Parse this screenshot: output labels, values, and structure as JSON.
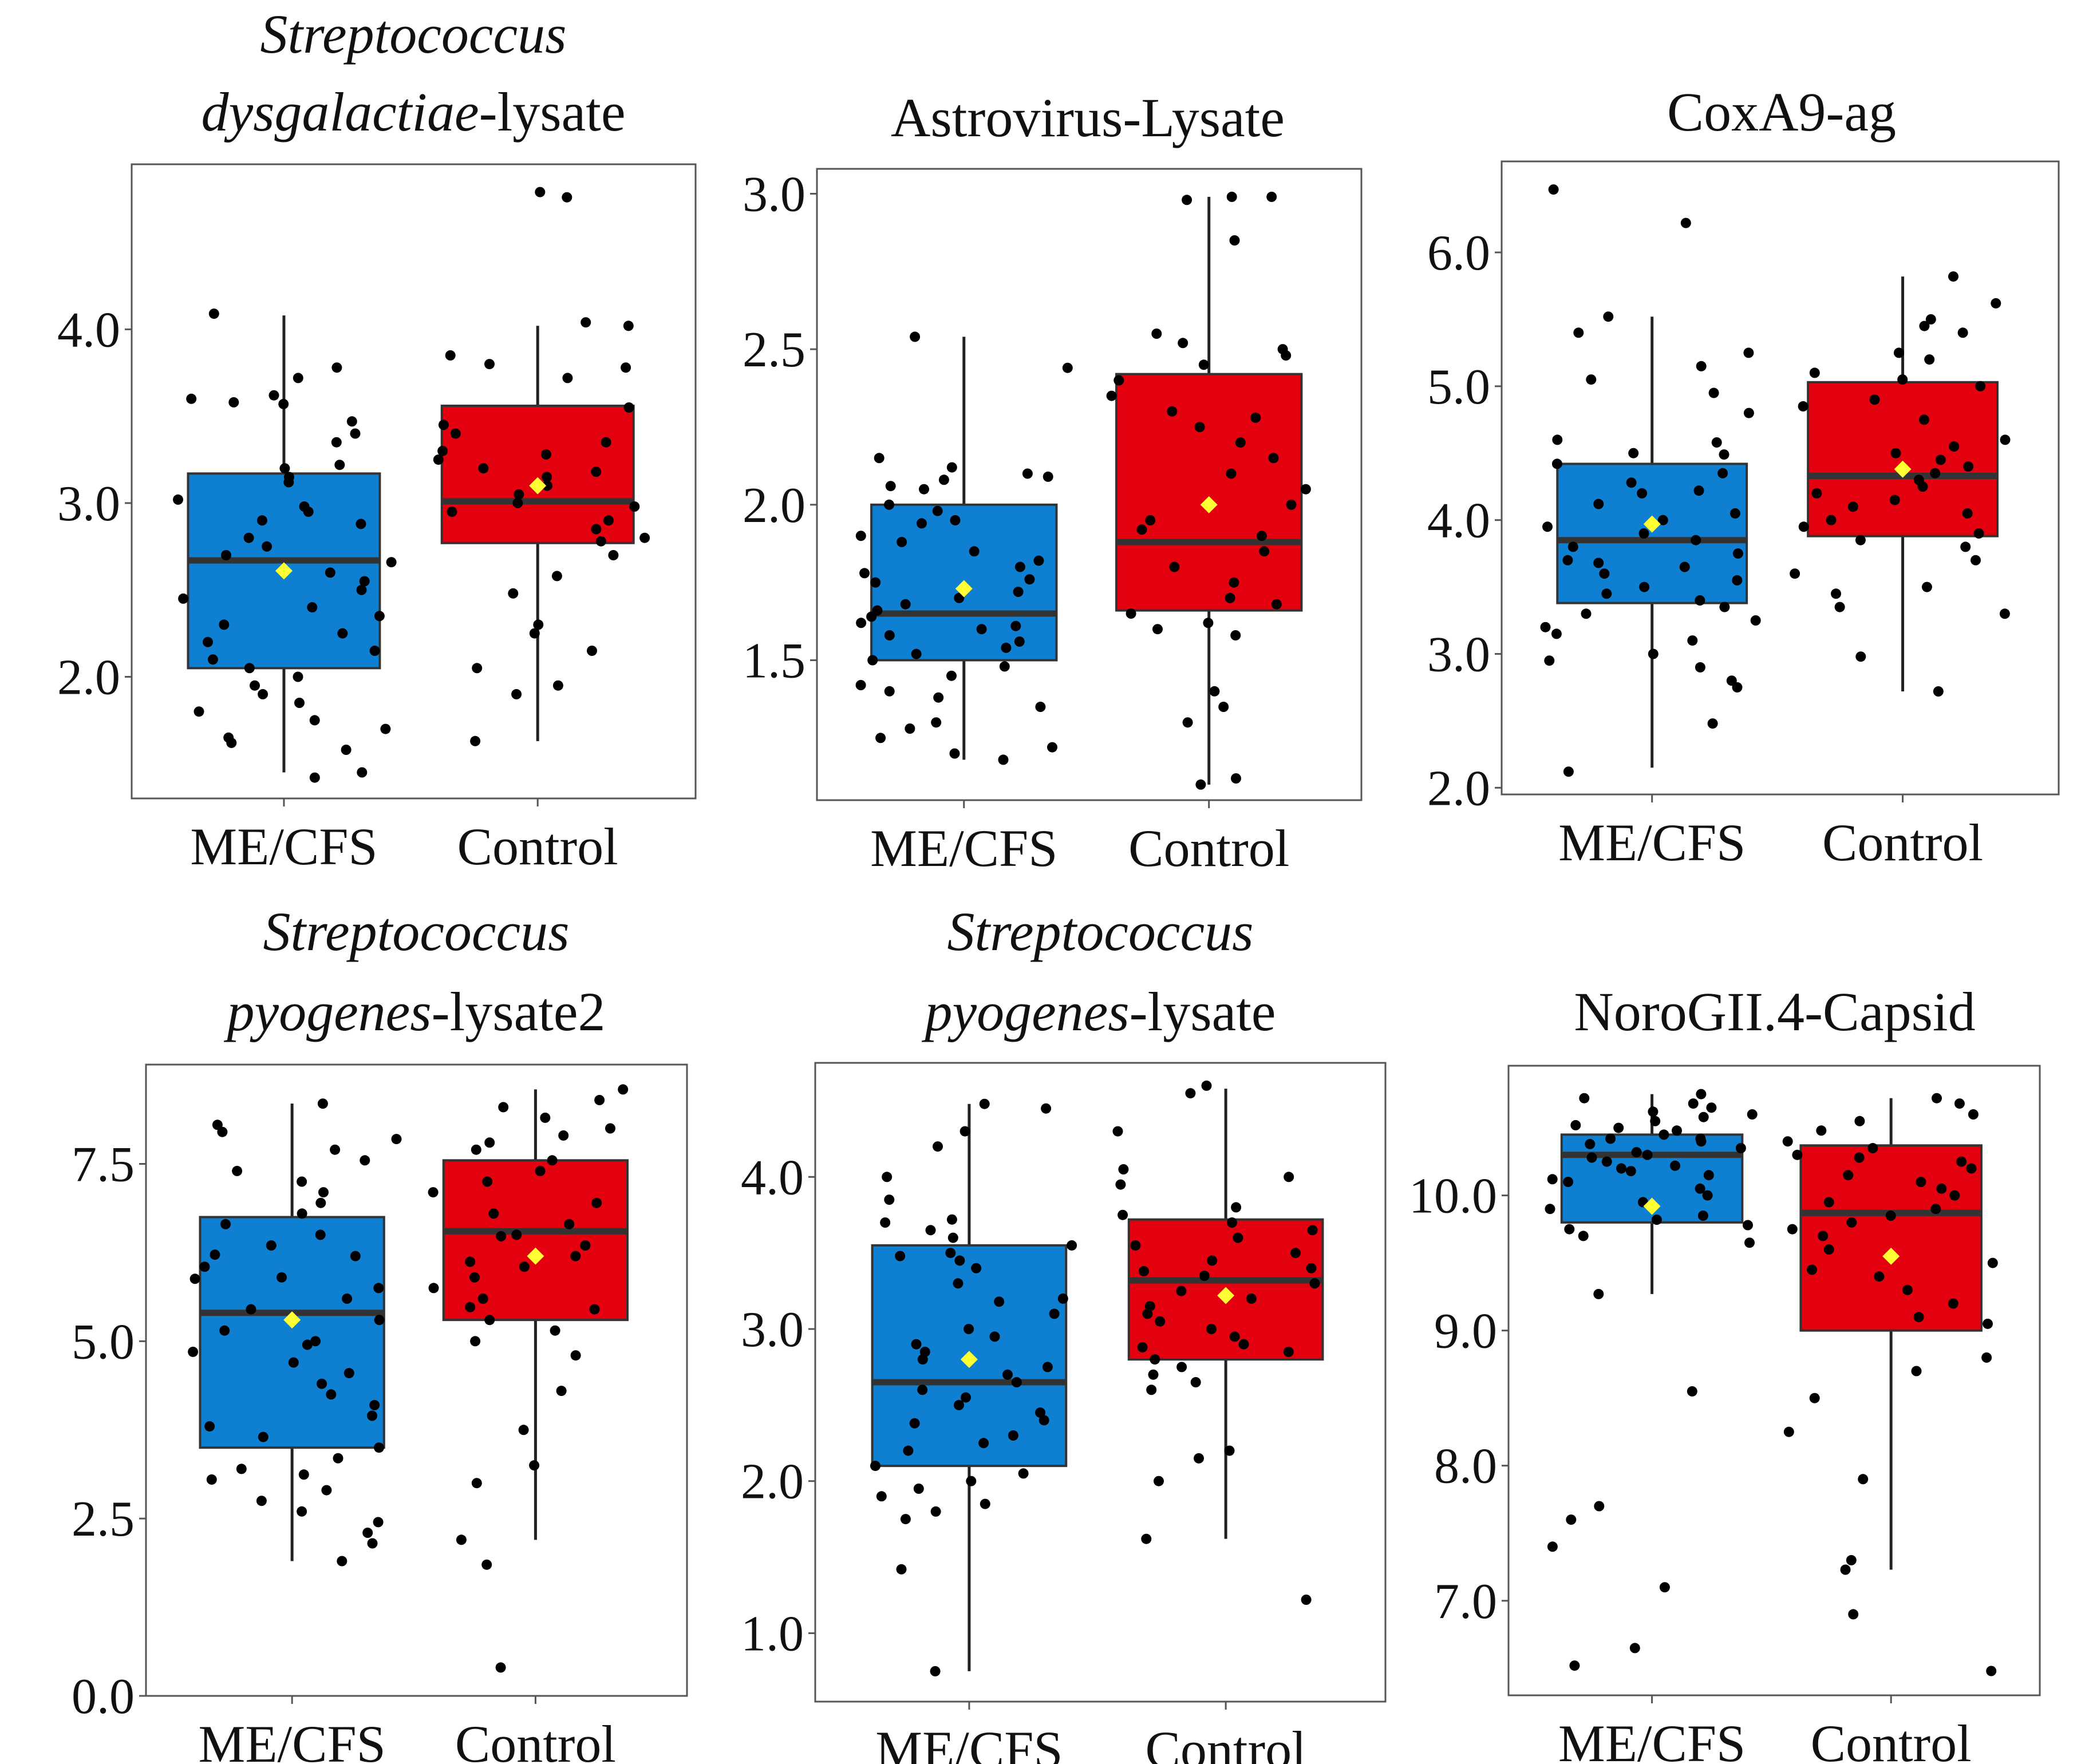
{
  "colors": {
    "mecfs_fill": "#0f7fd1",
    "control_fill": "#e3000f",
    "median_line": "#333333",
    "mean_marker": "#ffff33",
    "point": "#000000",
    "whisker": "#222222"
  },
  "chart_data": [
    {
      "type": "box",
      "title_lines": [
        {
          "parts": [
            {
              "text": "Streptococcus",
              "italic": true
            }
          ]
        },
        {
          "parts": [
            {
              "text": "dysgalactiae",
              "italic": true
            },
            {
              "text": "-lysate",
              "italic": false
            }
          ]
        }
      ],
      "categories": [
        "ME/CFS",
        "Control"
      ],
      "yticks": [
        "4.0",
        "3.0",
        "2.0"
      ],
      "ylim": [
        1.3,
        4.95
      ],
      "grid": false,
      "boxes": [
        {
          "q1": 2.05,
          "median": 2.67,
          "q3": 3.17,
          "whisker_low": 1.45,
          "whisker_high": 4.08,
          "mean": 2.61,
          "points": [
            4.09,
            3.78,
            3.72,
            3.62,
            3.58,
            3.4,
            3.22,
            3.2,
            3.15,
            3.12,
            3.02,
            2.98,
            2.95,
            2.9,
            2.88,
            2.8,
            2.75,
            2.7,
            2.66,
            2.6,
            2.55,
            2.5,
            2.45,
            2.4,
            2.35,
            2.3,
            2.25,
            2.2,
            2.15,
            2.1,
            2.05,
            2.0,
            1.95,
            1.9,
            1.85,
            1.8,
            1.75,
            1.7,
            1.65,
            1.62,
            1.58,
            1.45,
            1.42,
            3.6,
            3.57,
            3.47,
            3.35
          ]
        },
        {
          "q1": 2.77,
          "median": 3.01,
          "q3": 3.56,
          "whisker_low": 1.63,
          "whisker_high": 4.02,
          "mean": 3.1,
          "points": [
            4.76,
            4.79,
            4.02,
            4.04,
            3.85,
            3.8,
            3.78,
            3.72,
            3.55,
            3.45,
            3.4,
            3.3,
            3.25,
            3.2,
            3.15,
            3.1,
            3.05,
            3.0,
            2.98,
            2.95,
            2.9,
            2.85,
            2.8,
            2.78,
            2.7,
            2.58,
            2.48,
            2.3,
            2.25,
            2.15,
            2.05,
            1.95,
            1.9,
            1.63,
            3.35,
            3.28,
            3.18
          ]
        }
      ]
    },
    {
      "type": "box",
      "title_lines": [
        {
          "parts": [
            {
              "text": "Astrovirus-Lysate",
              "italic": false
            }
          ]
        }
      ],
      "categories": [
        "ME/CFS",
        "Control"
      ],
      "yticks": [
        "3.0",
        "2.5",
        "2.0",
        "1.5"
      ],
      "ylim": [
        1.05,
        3.08
      ],
      "grid": false,
      "boxes": [
        {
          "q1": 1.5,
          "median": 1.65,
          "q3": 2.0,
          "whisker_low": 1.18,
          "whisker_high": 2.54,
          "mean": 1.73,
          "points": [
            2.54,
            2.44,
            2.15,
            2.12,
            2.1,
            2.08,
            2.05,
            2.0,
            1.98,
            1.95,
            1.9,
            1.88,
            1.85,
            1.82,
            1.8,
            1.78,
            1.75,
            1.72,
            1.7,
            1.68,
            1.66,
            1.64,
            1.62,
            1.6,
            1.58,
            1.56,
            1.54,
            1.52,
            1.5,
            1.48,
            1.45,
            1.42,
            1.4,
            1.38,
            1.35,
            1.3,
            1.28,
            1.25,
            1.22,
            1.2,
            1.18,
            2.09,
            2.06,
            1.94,
            1.76,
            1.61
          ]
        },
        {
          "q1": 1.66,
          "median": 1.88,
          "q3": 2.42,
          "whisker_low": 1.1,
          "whisker_high": 2.99,
          "mean": 2.0,
          "points": [
            2.99,
            2.99,
            2.85,
            2.98,
            2.55,
            2.5,
            2.48,
            2.45,
            2.4,
            2.35,
            2.3,
            2.25,
            2.2,
            2.15,
            2.1,
            2.05,
            2.0,
            1.95,
            1.9,
            1.85,
            1.8,
            1.75,
            1.7,
            1.68,
            1.65,
            1.62,
            1.6,
            1.58,
            1.4,
            1.35,
            1.3,
            1.12,
            1.1,
            2.52,
            2.28,
            1.92
          ]
        }
      ]
    },
    {
      "type": "box",
      "title_lines": [
        {
          "parts": [
            {
              "text": "CoxA9-ag",
              "italic": false
            }
          ]
        }
      ],
      "categories": [
        "ME/CFS",
        "Control"
      ],
      "yticks": [
        "6.0",
        "5.0",
        "4.0",
        "3.0",
        "2.0"
      ],
      "ylim": [
        1.95,
        6.68
      ],
      "grid": false,
      "boxes": [
        {
          "q1": 3.38,
          "median": 3.85,
          "q3": 4.42,
          "whisker_low": 2.15,
          "whisker_high": 5.52,
          "mean": 3.97,
          "points": [
            6.47,
            6.22,
            5.52,
            5.4,
            5.25,
            5.15,
            5.05,
            4.95,
            4.8,
            4.6,
            4.5,
            4.42,
            4.35,
            4.28,
            4.2,
            4.12,
            4.05,
            4.0,
            3.95,
            3.9,
            3.85,
            3.8,
            3.75,
            3.7,
            3.65,
            3.6,
            3.55,
            3.5,
            3.45,
            3.4,
            3.35,
            3.3,
            3.25,
            3.2,
            3.15,
            3.1,
            3.0,
            2.95,
            2.9,
            2.8,
            2.75,
            2.48,
            2.12,
            4.58,
            4.49,
            4.22,
            3.68
          ]
        },
        {
          "q1": 3.88,
          "median": 4.33,
          "q3": 5.03,
          "whisker_low": 2.72,
          "whisker_high": 5.82,
          "mean": 4.38,
          "points": [
            5.82,
            5.62,
            5.5,
            5.45,
            5.4,
            5.25,
            5.2,
            5.1,
            5.05,
            5.0,
            4.9,
            4.85,
            4.75,
            4.6,
            4.55,
            4.5,
            4.45,
            4.4,
            4.35,
            4.3,
            4.25,
            4.2,
            4.15,
            4.1,
            4.05,
            4.0,
            3.95,
            3.9,
            3.85,
            3.8,
            3.7,
            3.6,
            3.5,
            3.45,
            3.35,
            3.3,
            2.98,
            2.72
          ]
        }
      ]
    },
    {
      "type": "box",
      "title_lines": [
        {
          "parts": [
            {
              "text": "Streptococcus",
              "italic": true
            }
          ]
        },
        {
          "parts": [
            {
              "text": "pyogenes",
              "italic": true
            },
            {
              "text": "-lysate2",
              "italic": false
            }
          ]
        }
      ],
      "categories": [
        "ME/CFS",
        "Control"
      ],
      "yticks": [
        "7.5",
        "5.0",
        "2.5",
        "0.0"
      ],
      "ylim": [
        0.0,
        8.9
      ],
      "grid": false,
      "boxes": [
        {
          "q1": 3.5,
          "median": 5.4,
          "q3": 6.75,
          "whisker_low": 1.9,
          "whisker_high": 8.35,
          "mean": 5.3,
          "points": [
            8.35,
            8.05,
            7.95,
            7.85,
            7.7,
            7.55,
            7.4,
            7.25,
            7.1,
            6.95,
            6.8,
            6.65,
            6.5,
            6.35,
            6.2,
            6.05,
            5.9,
            5.75,
            5.6,
            5.45,
            5.3,
            5.15,
            5.0,
            4.85,
            4.7,
            4.55,
            4.4,
            4.25,
            4.1,
            3.95,
            3.8,
            3.65,
            3.5,
            3.35,
            3.2,
            3.05,
            2.9,
            2.75,
            2.6,
            2.45,
            2.3,
            2.15,
            1.9,
            6.22,
            5.88,
            4.95,
            3.12
          ]
        },
        {
          "q1": 5.3,
          "median": 6.55,
          "q3": 7.55,
          "whisker_low": 2.2,
          "whisker_high": 8.55,
          "mean": 6.2,
          "points": [
            8.55,
            8.4,
            8.3,
            8.15,
            8.0,
            7.9,
            7.8,
            7.7,
            7.55,
            7.4,
            7.25,
            7.1,
            6.95,
            6.8,
            6.65,
            6.5,
            6.35,
            6.2,
            6.05,
            5.9,
            5.75,
            5.6,
            5.45,
            5.3,
            5.15,
            5.0,
            4.8,
            4.3,
            3.75,
            3.25,
            3.0,
            2.2,
            1.85,
            0.4,
            6.48,
            6.12,
            5.48
          ]
        }
      ]
    },
    {
      "type": "box",
      "title_lines": [
        {
          "parts": [
            {
              "text": "Streptococcus",
              "italic": true
            }
          ]
        },
        {
          "parts": [
            {
              "text": "pyogenes",
              "italic": true
            },
            {
              "text": "-lysate",
              "italic": false
            }
          ]
        }
      ],
      "categories": [
        "ME/CFS",
        "Control"
      ],
      "yticks": [
        "4.0",
        "3.0",
        "2.0",
        "1.0"
      ],
      "ylim": [
        0.55,
        4.75
      ],
      "grid": false,
      "boxes": [
        {
          "q1": 2.1,
          "median": 2.65,
          "q3": 3.55,
          "whisker_low": 0.75,
          "whisker_high": 4.48,
          "mean": 2.8,
          "points": [
            4.48,
            4.45,
            4.3,
            4.2,
            4.0,
            3.85,
            3.72,
            3.7,
            3.65,
            3.6,
            3.55,
            3.5,
            3.45,
            3.4,
            3.3,
            3.2,
            3.1,
            3.0,
            2.95,
            2.9,
            2.85,
            2.8,
            2.75,
            2.7,
            2.65,
            2.6,
            2.55,
            2.5,
            2.45,
            2.4,
            2.3,
            2.25,
            2.2,
            2.1,
            2.05,
            2.0,
            1.95,
            1.9,
            1.85,
            1.8,
            1.75,
            1.42,
            0.75,
            3.48,
            3.18,
            2.38
          ]
        },
        {
          "q1": 2.8,
          "median": 3.32,
          "q3": 3.72,
          "whisker_low": 1.62,
          "whisker_high": 4.58,
          "mean": 3.22,
          "points": [
            4.6,
            4.55,
            4.3,
            4.05,
            4.0,
            3.95,
            3.8,
            3.75,
            3.7,
            3.65,
            3.6,
            3.55,
            3.5,
            3.45,
            3.4,
            3.35,
            3.3,
            3.25,
            3.2,
            3.15,
            3.1,
            3.05,
            3.0,
            2.95,
            2.9,
            2.85,
            2.8,
            2.75,
            2.7,
            2.65,
            2.6,
            2.2,
            2.15,
            2.0,
            1.62,
            1.22,
            3.38,
            2.88
          ]
        }
      ]
    },
    {
      "type": "box",
      "title_lines": [
        {
          "parts": [
            {
              "text": "NoroGII.4-Capsid",
              "italic": false
            }
          ]
        }
      ],
      "categories": [
        "ME/CFS",
        "Control"
      ],
      "yticks": [
        "10.0",
        "9.0",
        "8.0",
        "7.0"
      ],
      "ylim": [
        6.3,
        10.96
      ],
      "grid": false,
      "boxes": [
        {
          "q1": 9.8,
          "median": 10.3,
          "q3": 10.45,
          "whisker_low": 9.27,
          "whisker_high": 10.75,
          "mean": 9.92,
          "points": [
            10.75,
            10.72,
            10.68,
            10.65,
            10.62,
            10.58,
            10.55,
            10.52,
            10.5,
            10.48,
            10.45,
            10.42,
            10.4,
            10.38,
            10.35,
            10.32,
            10.3,
            10.28,
            10.25,
            10.22,
            10.2,
            10.18,
            10.15,
            10.1,
            10.05,
            10.0,
            9.95,
            9.9,
            9.85,
            9.82,
            9.78,
            9.75,
            9.7,
            9.65,
            9.27,
            8.55,
            7.7,
            7.6,
            7.4,
            7.1,
            6.65,
            6.52,
            10.6,
            10.42,
            10.12
          ]
        },
        {
          "q1": 9.0,
          "median": 9.87,
          "q3": 10.37,
          "whisker_low": 7.23,
          "whisker_high": 10.72,
          "mean": 9.55,
          "points": [
            10.72,
            10.68,
            10.6,
            10.55,
            10.48,
            10.4,
            10.35,
            10.3,
            10.25,
            10.2,
            10.15,
            10.1,
            10.05,
            10.0,
            9.95,
            9.9,
            9.85,
            9.8,
            9.75,
            9.7,
            9.6,
            9.5,
            9.4,
            9.3,
            9.2,
            9.1,
            9.05,
            8.8,
            8.7,
            8.5,
            8.25,
            7.9,
            7.3,
            7.23,
            6.9,
            6.48,
            10.28,
            9.45
          ]
        }
      ]
    }
  ]
}
